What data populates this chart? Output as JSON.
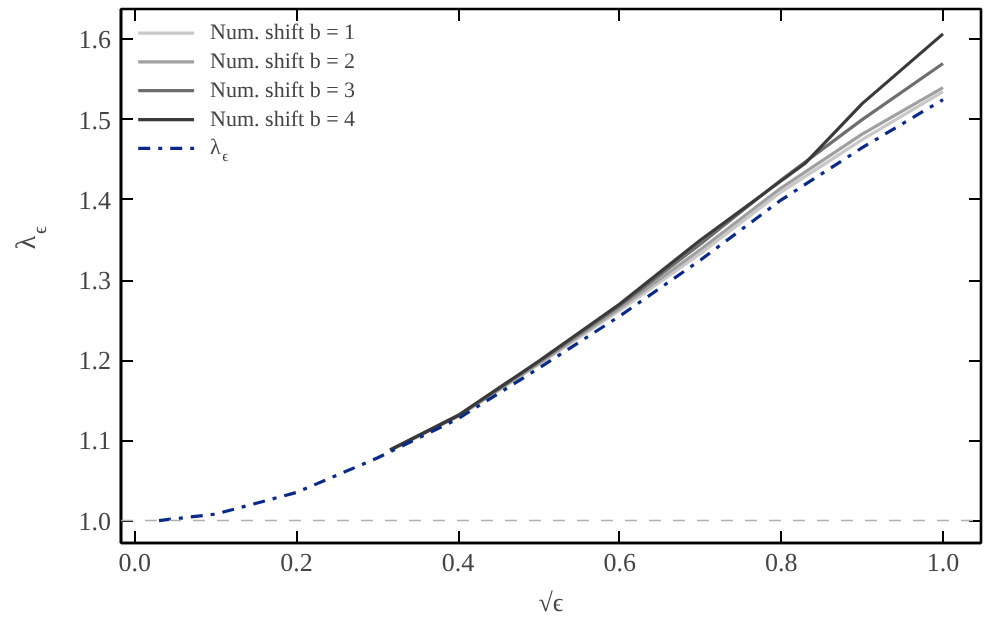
{
  "chart_data": {
    "type": "line",
    "xlabel": "√ϵ",
    "ylabel": "λ$_{ϵ}$",
    "xlim": [
      -0.017,
      1.047
    ],
    "ylim": [
      0.972,
      1.638
    ],
    "xticks": [
      {
        "value": 0,
        "label": "0.0"
      },
      0.2,
      0.4,
      0.6,
      0.8,
      {
        "value": 1,
        "label": "1.0"
      }
    ],
    "yticks": [
      {
        "value": 1,
        "label": "1.0"
      },
      1.1,
      1.2,
      1.3,
      1.4,
      1.5,
      1.6
    ],
    "grid": false,
    "legend": "top left",
    "marker": "none",
    "ref_lines": [
      {
        "axis": "y",
        "value": 1.0,
        "color": "#b0b0b0",
        "line_style": "dashed"
      }
    ],
    "series": [
      {
        "name": "Num. shift b = 1",
        "color": "#c8c8c8",
        "line_style": "solid",
        "x": [
          0.316,
          0.4,
          0.5,
          0.6,
          0.7,
          0.8,
          0.9,
          1.0
        ],
        "values": [
          1.088,
          1.13,
          1.195,
          1.262,
          1.333,
          1.41,
          1.475,
          1.535
        ]
      },
      {
        "name": "Num. shift b = 2",
        "color": "#a0a0a0",
        "line_style": "solid",
        "x": [
          0.316,
          0.4,
          0.5,
          0.6,
          0.7,
          0.8,
          0.9,
          1.0
        ],
        "values": [
          1.088,
          1.13,
          1.196,
          1.265,
          1.338,
          1.415,
          1.482,
          1.54
        ]
      },
      {
        "name": "Num. shift b = 3",
        "color": "#6e6e6e",
        "line_style": "solid",
        "x": [
          0.316,
          0.4,
          0.5,
          0.6,
          0.7,
          0.8,
          0.9,
          1.0
        ],
        "values": [
          1.088,
          1.131,
          1.198,
          1.268,
          1.345,
          1.425,
          1.5,
          1.57
        ]
      },
      {
        "name": "Num. shift b = 4",
        "color": "#3a3a3a",
        "line_style": "solid",
        "x": [
          0.316,
          0.4,
          0.5,
          0.6,
          0.7,
          0.83,
          0.9,
          1.0
        ],
        "values": [
          1.088,
          1.131,
          1.199,
          1.27,
          1.35,
          1.446,
          1.52,
          1.607
        ]
      },
      {
        "name": "λ$_{ϵ}$",
        "color": "#0a2a8a",
        "line_style": "dashdot",
        "x": [
          0.03,
          0.1,
          0.2,
          0.3,
          0.4,
          0.5,
          0.6,
          0.7,
          0.8,
          0.9,
          1.0
        ],
        "values": [
          1.0,
          1.008,
          1.035,
          1.078,
          1.127,
          1.19,
          1.255,
          1.325,
          1.4,
          1.465,
          1.525
        ]
      }
    ]
  }
}
